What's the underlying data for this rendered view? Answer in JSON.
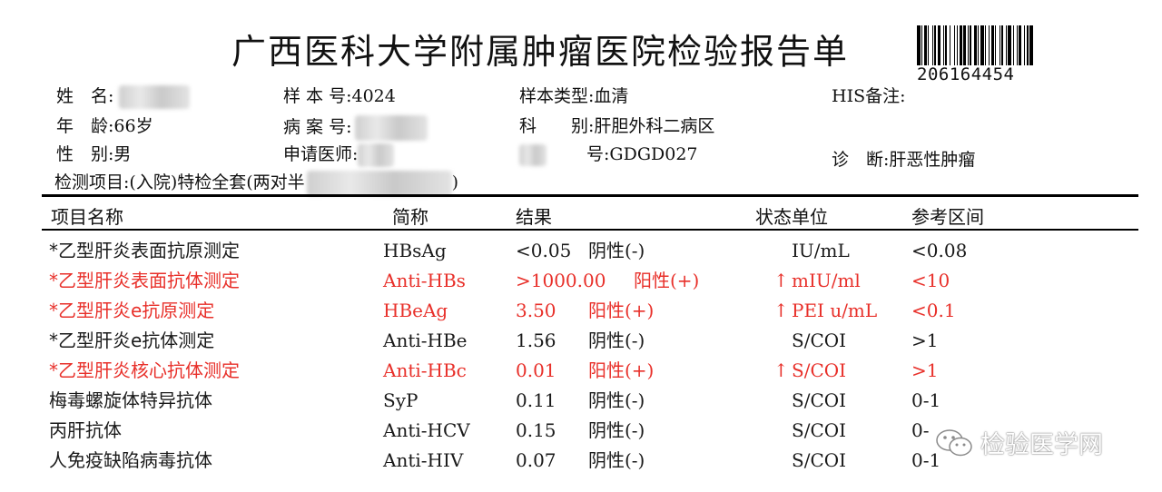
{
  "report": {
    "title": "广西医科大学附属肿瘤医院检验报告单",
    "barcode_number": "206164454"
  },
  "patient": {
    "name_label": "姓　名:",
    "age_label": "年　龄:",
    "age_value": "66岁",
    "sex_label": "性　别:",
    "sex_value": "男",
    "sample_no_label": "样 本 号:",
    "sample_no_value": "4024",
    "case_no_label": "病 案 号:",
    "doctor_label": "申请医师:",
    "sample_type_label": "样本类型:",
    "sample_type_value": "血清",
    "dept_label": "科　　别:",
    "dept_value": "肝胆外科二病区",
    "bed_label_tail": "号:",
    "bed_value": "GDGD027",
    "his_label": "HIS备注:",
    "diagnosis_label": "诊　断:",
    "diagnosis_value": "肝恶性肿瘤",
    "test_items_label": "检测项目:(入院)特检全套(两对半"
  },
  "table": {
    "headers": {
      "name": "项目名称",
      "abbr": "简称",
      "result": "结果",
      "status_unit": "状态单位",
      "reference": "参考区间"
    },
    "rows": [
      {
        "name": "*乙型肝炎表面抗原测定",
        "abbr": "HBsAg",
        "value": "<0.05",
        "qual": "阴性(-)",
        "flag": "",
        "unit": "IU/mL",
        "ref": "<0.08",
        "abnormal": false
      },
      {
        "name": "*乙型肝炎表面抗体测定",
        "abbr": "Anti-HBs",
        "value": ">1000.00",
        "qual": "阳性(+)",
        "flag": "↑",
        "unit": "mIU/ml",
        "ref": "<10",
        "abnormal": true
      },
      {
        "name": "*乙型肝炎e抗原测定",
        "abbr": "HBeAg",
        "value": "3.50",
        "qual": "阳性(+)",
        "flag": "↑",
        "unit": "PEI u/mL",
        "ref": "<0.1",
        "abnormal": true
      },
      {
        "name": "*乙型肝炎e抗体测定",
        "abbr": "Anti-HBe",
        "value": "1.56",
        "qual": "阴性(-)",
        "flag": "",
        "unit": "S/COI",
        "ref": ">1",
        "abnormal": false
      },
      {
        "name": "*乙型肝炎核心抗体测定",
        "abbr": "Anti-HBc",
        "value": "0.01",
        "qual": "阳性(+)",
        "flag": "↑",
        "unit": "S/COI",
        "ref": ">1",
        "abnormal": true
      },
      {
        "name": "梅毒螺旋体特异抗体",
        "abbr": "SyP",
        "value": "0.11",
        "qual": "阴性(-)",
        "flag": "",
        "unit": "S/COI",
        "ref": "0-1",
        "abnormal": false
      },
      {
        "name": "丙肝抗体",
        "abbr": "Anti-HCV",
        "value": "0.15",
        "qual": "阴性(-)",
        "flag": "",
        "unit": "S/COI",
        "ref": "0-",
        "abnormal": false
      },
      {
        "name": "人免疫缺陷病毒抗体",
        "abbr": "Anti-HIV",
        "value": "0.07",
        "qual": "阴性(-)",
        "flag": "",
        "unit": "S/COI",
        "ref": "0-1",
        "abnormal": false
      }
    ]
  },
  "watermark": {
    "text": "检验医学网",
    "icon": "wechat-icon"
  },
  "colors": {
    "abnormal_red": "#e8302a",
    "text": "#111111"
  }
}
